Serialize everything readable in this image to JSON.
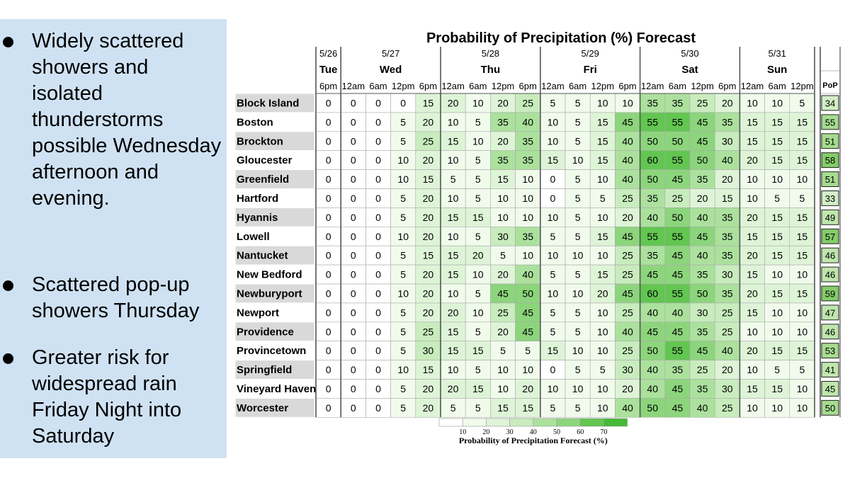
{
  "bullets": [
    {
      "text": "Widely scattered showers and isolated thunderstorms possible Wednesday afternoon and evening."
    },
    {
      "text": "Scattered pop-up showers Thursday"
    },
    {
      "text": "Greater risk for widespread rain Friday Night into Saturday"
    }
  ],
  "chart_data": {
    "type": "table",
    "title": "Probability of Precipitation (%) Forecast",
    "days": [
      {
        "date": "5/26",
        "day": "Tue",
        "span": 1
      },
      {
        "date": "5/27",
        "day": "Wed",
        "span": 4
      },
      {
        "date": "5/28",
        "day": "Thu",
        "span": 4
      },
      {
        "date": "5/29",
        "day": "Fri",
        "span": 4
      },
      {
        "date": "5/30",
        "day": "Sat",
        "span": 4
      },
      {
        "date": "5/31",
        "day": "Sun",
        "span": 3
      }
    ],
    "time_labels": [
      "6pm",
      "12am",
      "6am",
      "12pm",
      "6pm",
      "12am",
      "6am",
      "12pm",
      "6pm",
      "12am",
      "6am",
      "12pm",
      "6pm",
      "12am",
      "6am",
      "12pm",
      "6pm",
      "12am",
      "6am",
      "12pm"
    ],
    "pop_header": "PoP",
    "rows": [
      {
        "city": "Block Island",
        "values": [
          0,
          0,
          0,
          0,
          15,
          20,
          10,
          20,
          25,
          5,
          5,
          10,
          10,
          35,
          35,
          25,
          20,
          10,
          10,
          5
        ],
        "pop": 34
      },
      {
        "city": "Boston",
        "values": [
          0,
          0,
          0,
          5,
          20,
          10,
          5,
          35,
          40,
          10,
          5,
          15,
          45,
          55,
          55,
          45,
          35,
          15,
          15,
          15
        ],
        "pop": 55
      },
      {
        "city": "Brockton",
        "values": [
          0,
          0,
          0,
          5,
          25,
          15,
          10,
          20,
          35,
          10,
          5,
          15,
          40,
          50,
          50,
          45,
          30,
          15,
          15,
          15
        ],
        "pop": 51
      },
      {
        "city": "Gloucester",
        "values": [
          0,
          0,
          0,
          10,
          20,
          10,
          5,
          35,
          35,
          15,
          10,
          15,
          40,
          60,
          55,
          50,
          40,
          20,
          15,
          15
        ],
        "pop": 58
      },
      {
        "city": "Greenfield",
        "values": [
          0,
          0,
          0,
          10,
          15,
          5,
          5,
          15,
          10,
          0,
          5,
          10,
          40,
          50,
          45,
          35,
          20,
          10,
          10,
          10
        ],
        "pop": 51
      },
      {
        "city": "Hartford",
        "values": [
          0,
          0,
          0,
          5,
          20,
          10,
          5,
          10,
          10,
          0,
          5,
          5,
          25,
          35,
          25,
          20,
          15,
          10,
          5,
          5
        ],
        "pop": 33
      },
      {
        "city": "Hyannis",
        "values": [
          0,
          0,
          0,
          5,
          20,
          15,
          15,
          10,
          10,
          10,
          5,
          10,
          20,
          40,
          50,
          40,
          35,
          20,
          15,
          15
        ],
        "pop": 49
      },
      {
        "city": "Lowell",
        "values": [
          0,
          0,
          0,
          10,
          20,
          10,
          5,
          30,
          35,
          5,
          5,
          15,
          45,
          55,
          55,
          45,
          35,
          15,
          15,
          15
        ],
        "pop": 57
      },
      {
        "city": "Nantucket",
        "values": [
          0,
          0,
          0,
          5,
          15,
          15,
          20,
          5,
          10,
          10,
          10,
          10,
          25,
          35,
          45,
          40,
          35,
          20,
          15,
          15
        ],
        "pop": 46
      },
      {
        "city": "New Bedford",
        "values": [
          0,
          0,
          0,
          5,
          20,
          15,
          10,
          20,
          40,
          5,
          5,
          15,
          25,
          45,
          45,
          35,
          30,
          15,
          10,
          10
        ],
        "pop": 46
      },
      {
        "city": "Newburyport",
        "values": [
          0,
          0,
          0,
          10,
          20,
          10,
          5,
          45,
          50,
          10,
          10,
          20,
          45,
          60,
          55,
          50,
          35,
          20,
          15,
          15
        ],
        "pop": 59
      },
      {
        "city": "Newport",
        "values": [
          0,
          0,
          0,
          5,
          20,
          20,
          10,
          25,
          45,
          5,
          5,
          10,
          25,
          40,
          40,
          30,
          25,
          15,
          10,
          10
        ],
        "pop": 47
      },
      {
        "city": "Providence",
        "values": [
          0,
          0,
          0,
          5,
          25,
          15,
          5,
          20,
          45,
          5,
          5,
          10,
          40,
          45,
          45,
          35,
          25,
          10,
          10,
          10
        ],
        "pop": 46
      },
      {
        "city": "Provincetown",
        "values": [
          0,
          0,
          0,
          5,
          30,
          15,
          15,
          5,
          5,
          15,
          10,
          10,
          25,
          50,
          55,
          45,
          40,
          20,
          15,
          15
        ],
        "pop": 53
      },
      {
        "city": "Springfield",
        "values": [
          0,
          0,
          0,
          10,
          15,
          10,
          5,
          10,
          10,
          0,
          5,
          5,
          30,
          40,
          35,
          25,
          20,
          10,
          5,
          5
        ],
        "pop": 41
      },
      {
        "city": "Vineyard Haven",
        "values": [
          0,
          0,
          0,
          5,
          20,
          20,
          15,
          10,
          20,
          10,
          10,
          10,
          20,
          40,
          45,
          35,
          30,
          15,
          15,
          10
        ],
        "pop": 45
      },
      {
        "city": "Worcester",
        "values": [
          0,
          0,
          0,
          5,
          20,
          5,
          5,
          15,
          15,
          5,
          5,
          10,
          40,
          50,
          45,
          40,
          25,
          10,
          10,
          10
        ],
        "pop": 50
      }
    ],
    "legend": {
      "ticks": [
        10,
        20,
        30,
        40,
        50,
        60,
        70
      ],
      "title": "Probability of Precipitation Forecast (%)"
    },
    "colors": {
      "bins": [
        "#ffffff",
        "#f0fbec",
        "#def4d7",
        "#c8ecbd",
        "#abe19d",
        "#8cd57c",
        "#62c651",
        "#45b935"
      ],
      "pop_bins": [
        "#d3efc6",
        "#bfe6ad",
        "#a6dc8f",
        "#84cc68"
      ],
      "city_cell_alt": "#d9d9d9",
      "border": "#aaaaaa",
      "day_separator": "#555555",
      "pop_border": "#222222"
    }
  }
}
